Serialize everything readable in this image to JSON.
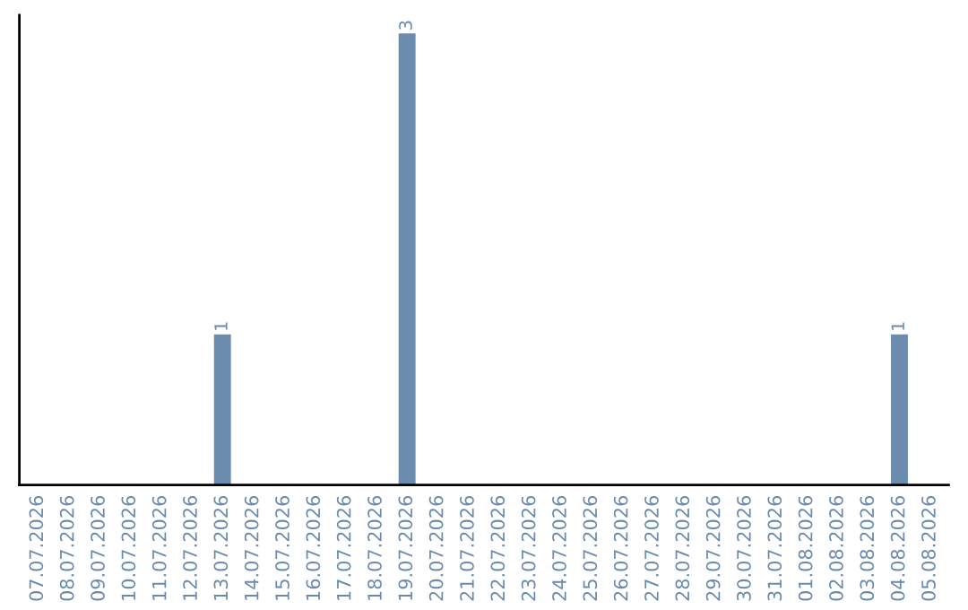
{
  "chart_data": {
    "type": "bar",
    "categories": [
      "07.07.2026",
      "08.07.2026",
      "09.07.2026",
      "10.07.2026",
      "11.07.2026",
      "12.07.2026",
      "13.07.2026",
      "14.07.2026",
      "15.07.2026",
      "16.07.2026",
      "17.07.2026",
      "18.07.2026",
      "19.07.2026",
      "20.07.2026",
      "21.07.2026",
      "22.07.2026",
      "23.07.2026",
      "24.07.2026",
      "25.07.2026",
      "26.07.2026",
      "27.07.2026",
      "28.07.2026",
      "29.07.2026",
      "30.07.2026",
      "31.07.2026",
      "01.08.2026",
      "02.08.2026",
      "03.08.2026",
      "04.08.2026",
      "05.08.2026"
    ],
    "values": [
      0,
      0,
      0,
      0,
      0,
      0,
      1,
      0,
      0,
      0,
      0,
      0,
      3,
      0,
      0,
      0,
      0,
      0,
      0,
      0,
      0,
      0,
      0,
      0,
      0,
      0,
      0,
      0,
      1,
      0
    ],
    "value_labels": [
      null,
      null,
      null,
      null,
      null,
      null,
      "1",
      null,
      null,
      null,
      null,
      null,
      "3",
      null,
      null,
      null,
      null,
      null,
      null,
      null,
      null,
      null,
      null,
      null,
      null,
      null,
      null,
      null,
      "1",
      null
    ],
    "color": "#6b8cae",
    "grid": false,
    "legend": false
  }
}
